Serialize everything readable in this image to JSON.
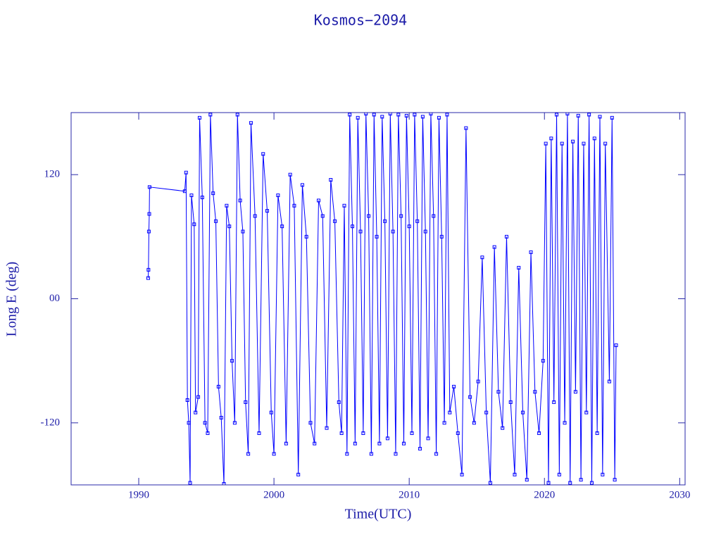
{
  "chart_data": {
    "type": "line",
    "title": "Kosmos−2094",
    "x_label": "Time(UTC)",
    "y_label": "Long E (deg)",
    "color": "#0000ff",
    "marker": "square",
    "xlim": [
      1985,
      2030.4
    ],
    "xticks": [
      1990,
      2000,
      2010,
      2020,
      2030
    ],
    "ylim": [
      -180,
      180
    ],
    "yticks": [
      -120,
      {
        "value": 0,
        "label": "00"
      },
      120
    ],
    "x": [
      1990.7,
      1990.72,
      1990.75,
      1990.78,
      1990.8,
      1993.4,
      1993.5,
      1993.6,
      1993.7,
      1993.8,
      1993.9,
      1994.1,
      1994.2,
      1994.4,
      1994.5,
      1994.7,
      1994.9,
      1995.1,
      1995.3,
      1995.5,
      1995.7,
      1995.9,
      1996.1,
      1996.3,
      1996.5,
      1996.7,
      1996.9,
      1997.1,
      1997.3,
      1997.5,
      1997.7,
      1997.9,
      1998.1,
      1998.3,
      1998.6,
      1998.9,
      1999.2,
      1999.5,
      1999.8,
      2000.0,
      2000.3,
      2000.6,
      2000.9,
      2001.2,
      2001.5,
      2001.8,
      2002.1,
      2002.4,
      2002.7,
      2003.0,
      2003.3,
      2003.6,
      2003.9,
      2004.2,
      2004.5,
      2004.8,
      2005.0,
      2005.2,
      2005.4,
      2005.6,
      2005.8,
      2006.0,
      2006.2,
      2006.4,
      2006.6,
      2006.8,
      2007.0,
      2007.2,
      2007.4,
      2007.6,
      2007.8,
      2008.0,
      2008.2,
      2008.4,
      2008.6,
      2008.8,
      2009.0,
      2009.2,
      2009.4,
      2009.6,
      2009.8,
      2010.0,
      2010.2,
      2010.4,
      2010.6,
      2010.8,
      2011.0,
      2011.2,
      2011.4,
      2011.6,
      2011.8,
      2012.0,
      2012.2,
      2012.4,
      2012.6,
      2012.8,
      2013.0,
      2013.3,
      2013.6,
      2013.9,
      2014.2,
      2014.5,
      2014.8,
      2015.1,
      2015.4,
      2015.7,
      2016.0,
      2016.3,
      2016.6,
      2016.9,
      2017.2,
      2017.5,
      2017.8,
      2018.1,
      2018.4,
      2018.7,
      2019.0,
      2019.3,
      2019.6,
      2019.9,
      2020.1,
      2020.3,
      2020.5,
      2020.7,
      2020.9,
      2021.1,
      2021.3,
      2021.5,
      2021.7,
      2021.9,
      2022.1,
      2022.3,
      2022.5,
      2022.7,
      2022.9,
      2023.1,
      2023.3,
      2023.5,
      2023.7,
      2023.9,
      2024.1,
      2024.3,
      2024.5,
      2024.8,
      2025.0,
      2025.2,
      2025.3
    ],
    "values": [
      20,
      28,
      65,
      82,
      108,
      104,
      122,
      -98,
      -120,
      -178,
      100,
      72,
      -110,
      -95,
      175,
      98,
      -120,
      -130,
      178,
      102,
      75,
      -85,
      -115,
      -179,
      90,
      70,
      -60,
      -120,
      178,
      95,
      65,
      -100,
      -150,
      170,
      80,
      -130,
      140,
      85,
      -110,
      -150,
      100,
      70,
      -140,
      120,
      90,
      -170,
      110,
      60,
      -120,
      -140,
      95,
      80,
      -125,
      115,
      75,
      -100,
      -130,
      90,
      -150,
      178,
      70,
      -140,
      175,
      65,
      -130,
      179,
      80,
      -150,
      178,
      60,
      -140,
      176,
      75,
      -135,
      179,
      65,
      -150,
      178,
      80,
      -140,
      177,
      70,
      -130,
      178,
      75,
      -145,
      176,
      65,
      -135,
      179,
      80,
      -150,
      175,
      60,
      -120,
      178,
      -110,
      -85,
      -130,
      -170,
      165,
      -95,
      -120,
      -80,
      40,
      -110,
      -178,
      50,
      -90,
      -125,
      60,
      -100,
      -170,
      30,
      -110,
      -175,
      45,
      -90,
      -130,
      -60,
      150,
      -178,
      155,
      -100,
      178,
      -170,
      150,
      -120,
      179,
      -178,
      152,
      -90,
      177,
      -175,
      150,
      -110,
      178,
      -178,
      155,
      -130,
      176,
      -170,
      150,
      -80,
      175,
      -175,
      -45
    ]
  }
}
